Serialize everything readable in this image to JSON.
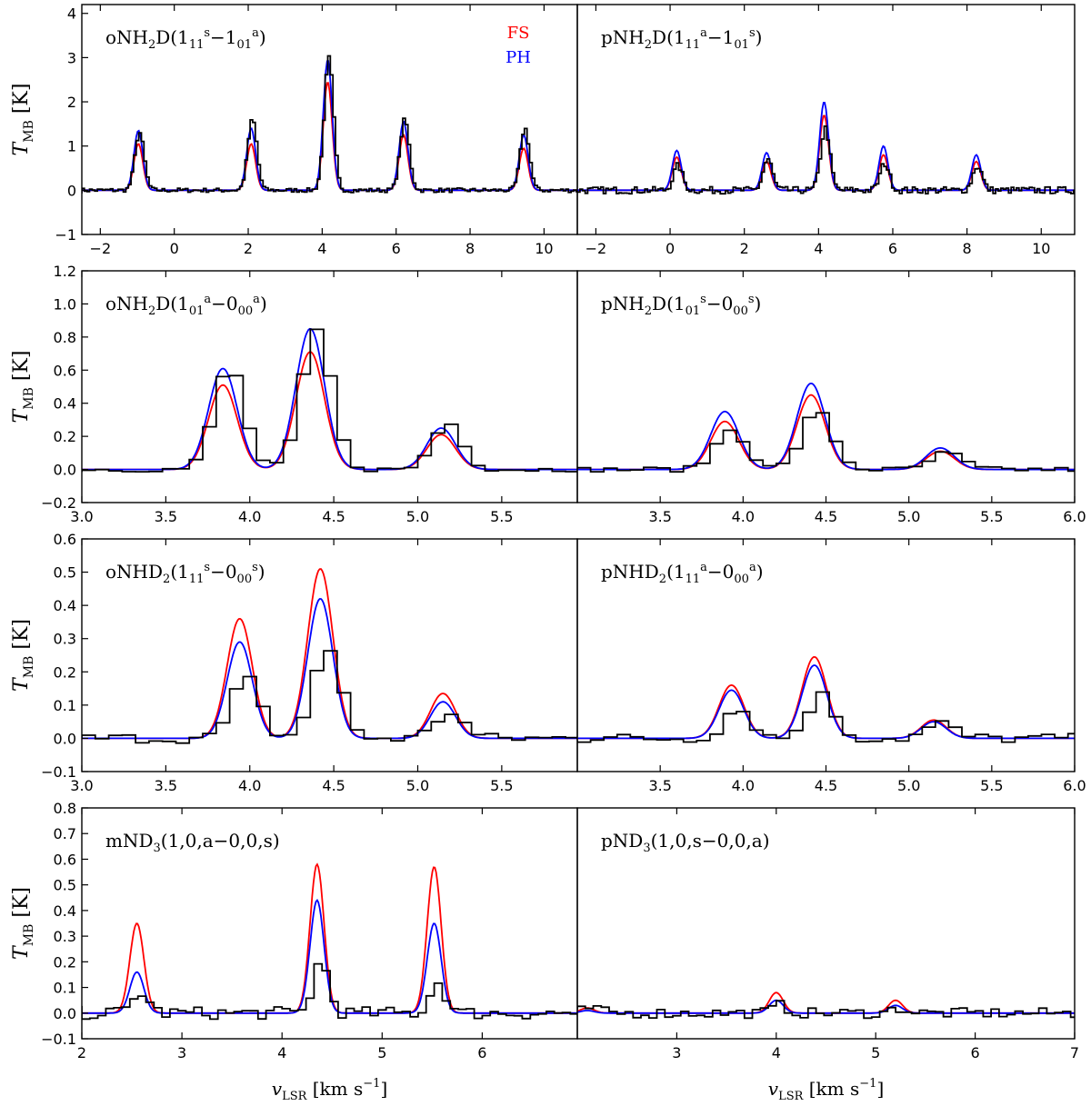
{
  "colors": {
    "fs": "#ff0000",
    "ph": "#0000ff",
    "obs": "#000000"
  },
  "legend": {
    "fs": "FS",
    "ph": "PH"
  },
  "axes": {
    "ylabel": {
      "main": "T",
      "sub": "MB",
      "unit": "[K]"
    },
    "xlabel": {
      "main": "v",
      "sub": "LSR",
      "unit": "[km s",
      "exp": "−1",
      "close": "]"
    }
  },
  "chart_data": [
    {
      "type": "line",
      "row": 0,
      "col": 0,
      "title": {
        "mol": "oNH",
        "molsub": "2",
        "mol2": "D(1",
        "s1": "11",
        "p1": "s",
        "dash": "−1",
        "s2": "01",
        "p2": "a",
        "end": ")"
      },
      "xlim": [
        -2.5,
        10.9
      ],
      "ylim": [
        -1,
        4.2
      ],
      "xticks": [
        -2,
        0,
        2,
        4,
        6,
        8,
        10
      ],
      "yticks": [
        -1,
        0,
        1,
        2,
        3,
        4
      ],
      "lines": [
        [
          -0.97,
          0.12
        ],
        [
          2.08,
          0.12
        ],
        [
          4.15,
          0.12
        ],
        [
          6.2,
          0.12
        ],
        [
          9.45,
          0.12
        ]
      ],
      "fs": [
        1.05,
        1.05,
        2.45,
        1.25,
        0.95
      ],
      "ph": [
        1.35,
        1.4,
        2.95,
        1.55,
        1.25
      ],
      "obs": [
        1.3,
        1.6,
        3.0,
        1.6,
        1.4
      ],
      "noise": 0.05,
      "wide_obs": true,
      "obs_step": 0.07
    },
    {
      "type": "line",
      "row": 0,
      "col": 1,
      "title": {
        "mol": "pNH",
        "molsub": "2",
        "mol2": "D(1",
        "s1": "11",
        "p1": "a",
        "dash": "−1",
        "s2": "01",
        "p2": "s",
        "end": ")"
      },
      "xlim": [
        -2.5,
        10.9
      ],
      "ylim": [
        -1,
        4.2
      ],
      "xticks": [
        -2,
        0,
        2,
        4,
        6,
        8,
        10
      ],
      "yticks": [],
      "lines": [
        [
          0.18,
          0.12
        ],
        [
          2.6,
          0.12
        ],
        [
          4.15,
          0.12
        ],
        [
          5.75,
          0.12
        ],
        [
          8.25,
          0.12
        ]
      ],
      "fs": [
        0.75,
        0.65,
        1.7,
        0.8,
        0.65
      ],
      "ph": [
        0.9,
        0.85,
        2.0,
        1.0,
        0.8
      ],
      "obs": [
        0.55,
        0.7,
        1.4,
        0.6,
        0.55
      ],
      "noise": 0.08,
      "wide_obs": true,
      "obs_step": 0.07
    },
    {
      "type": "line",
      "row": 1,
      "col": 0,
      "title": {
        "mol": "oNH",
        "molsub": "2",
        "mol2": "D(1",
        "s1": "01",
        "p1": "a",
        "dash": "−0",
        "s2": "00",
        "p2": "a",
        "end": ")"
      },
      "xlim": [
        3.0,
        5.95
      ],
      "ylim": [
        -0.2,
        1.2
      ],
      "xticks": [
        3.0,
        3.5,
        4.0,
        4.5,
        5.0,
        5.5
      ],
      "yticks": [
        -0.2,
        0.0,
        0.2,
        0.4,
        0.6,
        0.8,
        1.0,
        1.2
      ],
      "lines": [
        [
          3.84,
          0.085
        ],
        [
          4.36,
          0.085
        ],
        [
          5.14,
          0.085
        ]
      ],
      "fs": [
        0.51,
        0.71,
        0.21
      ],
      "ph": [
        0.61,
        0.85,
        0.25
      ],
      "obs": [
        0.62,
        0.84,
        0.28
      ],
      "noise": 0.015,
      "wide_obs": true,
      "obs_step": 0.08
    },
    {
      "type": "line",
      "row": 1,
      "col": 1,
      "title": {
        "mol": "pNH",
        "molsub": "2",
        "mol2": "D(1",
        "s1": "01",
        "p1": "s",
        "dash": "−0",
        "s2": "00",
        "p2": "s",
        "end": ")"
      },
      "xlim": [
        3.0,
        6.0
      ],
      "ylim": [
        -0.2,
        1.2
      ],
      "xticks": [
        3.5,
        4.0,
        4.5,
        5.0,
        5.5,
        6.0
      ],
      "yticks": [],
      "lines": [
        [
          3.89,
          0.085
        ],
        [
          4.41,
          0.085
        ],
        [
          5.19,
          0.085
        ]
      ],
      "fs": [
        0.29,
        0.45,
        0.11
      ],
      "ph": [
        0.35,
        0.52,
        0.13
      ],
      "obs": [
        0.24,
        0.35,
        0.1
      ],
      "noise": 0.015,
      "wide_obs": false,
      "obs_step": 0.08
    },
    {
      "type": "line",
      "row": 2,
      "col": 0,
      "title": {
        "mol": "oNHD",
        "molsub": "2",
        "mol2": "(1",
        "s1": "11",
        "p1": "s",
        "dash": "−0",
        "s2": "00",
        "p2": "s",
        "end": ")"
      },
      "xlim": [
        3.0,
        5.95
      ],
      "ylim": [
        -0.1,
        0.6
      ],
      "xticks": [
        3.0,
        3.5,
        4.0,
        4.5,
        5.0,
        5.5
      ],
      "yticks": [
        -0.1,
        0.0,
        0.1,
        0.2,
        0.3,
        0.4,
        0.5,
        0.6
      ],
      "lines": [
        [
          3.94,
          0.075
        ],
        [
          4.42,
          0.075
        ],
        [
          5.15,
          0.075
        ]
      ],
      "fs": [
        0.36,
        0.51,
        0.135
      ],
      "ph": [
        0.29,
        0.42,
        0.11
      ],
      "obs": [
        0.18,
        0.27,
        0.08
      ],
      "noise": 0.015,
      "wide_obs": false,
      "obs_step": 0.08
    },
    {
      "type": "line",
      "row": 2,
      "col": 1,
      "title": {
        "mol": "pNHD",
        "molsub": "2",
        "mol2": "(1",
        "s1": "11",
        "p1": "a",
        "dash": "−0",
        "s2": "00",
        "p2": "a",
        "end": ")"
      },
      "xlim": [
        3.0,
        6.0
      ],
      "ylim": [
        -0.1,
        0.6
      ],
      "xticks": [
        3.5,
        4.0,
        4.5,
        5.0,
        5.5,
        6.0
      ],
      "yticks": [],
      "lines": [
        [
          3.93,
          0.075
        ],
        [
          4.43,
          0.075
        ],
        [
          5.15,
          0.075
        ]
      ],
      "fs": [
        0.16,
        0.245,
        0.055
      ],
      "ph": [
        0.145,
        0.22,
        0.05
      ],
      "obs": [
        0.09,
        0.13,
        0.045
      ],
      "noise": 0.015,
      "wide_obs": false,
      "obs_step": 0.08
    },
    {
      "type": "line",
      "row": 3,
      "col": 0,
      "title": {
        "mol": "mND",
        "molsub": "3",
        "mol2": "(1,0,a−0,0,s)",
        "s1": "",
        "p1": "",
        "dash": "",
        "s2": "",
        "p2": "",
        "end": ""
      },
      "xlim": [
        2.0,
        6.95
      ],
      "ylim": [
        -0.1,
        0.8
      ],
      "xticks": [
        2,
        3,
        4,
        5,
        6
      ],
      "yticks": [
        -0.1,
        0.0,
        0.1,
        0.2,
        0.3,
        0.4,
        0.5,
        0.6,
        0.7,
        0.8
      ],
      "lines": [
        [
          2.55,
          0.07
        ],
        [
          4.35,
          0.07
        ],
        [
          5.52,
          0.07
        ]
      ],
      "fs": [
        0.35,
        0.58,
        0.57
      ],
      "ph": [
        0.16,
        0.44,
        0.35
      ],
      "obs": [
        0.08,
        0.2,
        0.12
      ],
      "noise": 0.025,
      "wide_obs": false,
      "obs_step": 0.08
    },
    {
      "type": "line",
      "row": 3,
      "col": 1,
      "title": {
        "mol": "pND",
        "molsub": "3",
        "mol2": "(1,0,s−0,0,a)",
        "s1": "",
        "p1": "",
        "dash": "",
        "s2": "",
        "p2": "",
        "end": ""
      },
      "xlim": [
        2.0,
        7.0
      ],
      "ylim": [
        -0.1,
        0.8
      ],
      "xticks": [
        3,
        4,
        5,
        6,
        7
      ],
      "yticks": [],
      "lines": [
        [
          4.0,
          0.07
        ],
        [
          5.2,
          0.07
        ],
        [
          2.1,
          0.07
        ]
      ],
      "fs": [
        0.08,
        0.05,
        0.02
      ],
      "ph": [
        0.05,
        0.03,
        0.01
      ],
      "obs": [
        0.03,
        0.02,
        0.02
      ],
      "noise": 0.02,
      "wide_obs": false,
      "obs_step": 0.08
    }
  ]
}
